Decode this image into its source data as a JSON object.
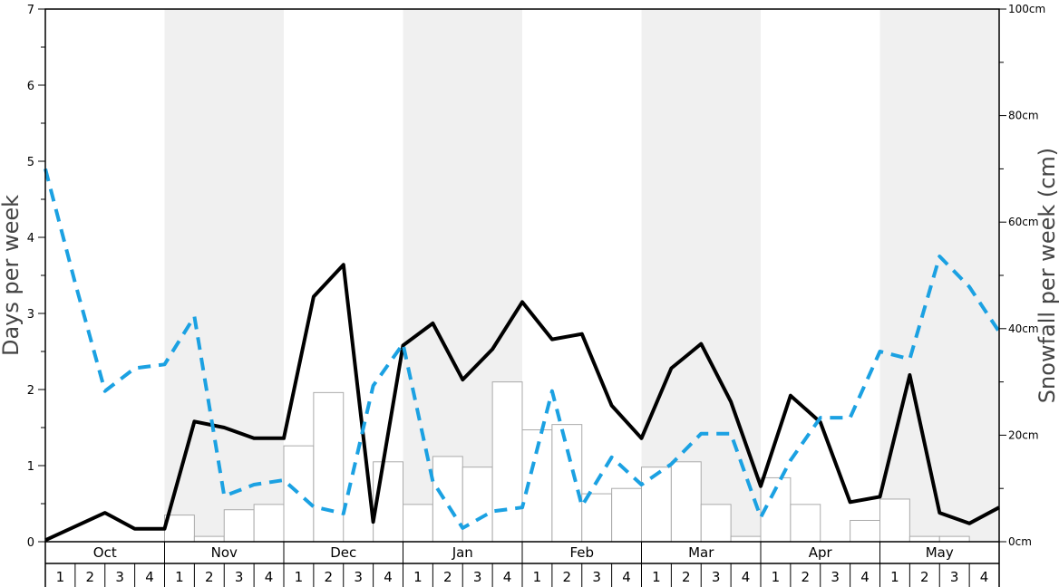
{
  "chart_data": {
    "type": "bar+line",
    "title": "",
    "ylabel_left": "Days per week",
    "ylabel_right": "Snowfall per week (cm)",
    "ylim_left": [
      0,
      7
    ],
    "ylim_right": [
      0,
      100
    ],
    "left_ticks": [
      "0",
      "1",
      "2",
      "3",
      "4",
      "5",
      "6",
      "7"
    ],
    "right_ticks": [
      "0cm",
      "20cm",
      "40cm",
      "60cm",
      "80cm",
      "100cm"
    ],
    "months": [
      "Oct",
      "Nov",
      "Dec",
      "Jan",
      "Feb",
      "Mar",
      "Apr",
      "May"
    ],
    "weeks": [
      "1",
      "2",
      "3",
      "4"
    ],
    "snowfall_cm": [
      0,
      0,
      0,
      0,
      5,
      1,
      6,
      7,
      18,
      28,
      0,
      15,
      7,
      16,
      14,
      30,
      21,
      22,
      9,
      10,
      14,
      15,
      7,
      1,
      12,
      7,
      0,
      4,
      8,
      1,
      1,
      0
    ],
    "series": [
      {
        "style": "solid-black",
        "values": [
          0.02,
          0.2,
          0.38,
          0.17,
          0.17,
          1.58,
          1.5,
          1.36,
          1.36,
          3.22,
          3.64,
          0.26,
          2.58,
          2.87,
          2.13,
          2.53,
          3.15,
          2.66,
          2.73,
          1.79,
          1.36,
          2.28,
          2.6,
          1.84,
          0.73,
          1.92,
          1.57,
          0.52,
          0.59,
          2.19,
          0.38,
          0.24,
          0.45
        ]
      },
      {
        "style": "dashed-blue",
        "color": "#1ba1e2",
        "values": [
          4.9,
          3.4,
          1.98,
          2.28,
          2.33,
          2.96,
          0.6,
          0.75,
          0.81,
          0.46,
          0.37,
          2.05,
          2.6,
          0.79,
          0.18,
          0.4,
          0.45,
          1.98,
          0.47,
          1.11,
          0.75,
          1.02,
          1.42,
          1.42,
          0.32,
          1.07,
          1.63,
          1.63,
          2.5,
          2.4,
          3.75,
          3.35,
          2.76
        ]
      }
    ],
    "colors": {
      "shade": "#f0f0f0",
      "bar_stroke": "#aaaaaa",
      "bar_fill": "#ffffff",
      "line_black": "#000000",
      "line_blue": "#1ba1e2"
    }
  }
}
